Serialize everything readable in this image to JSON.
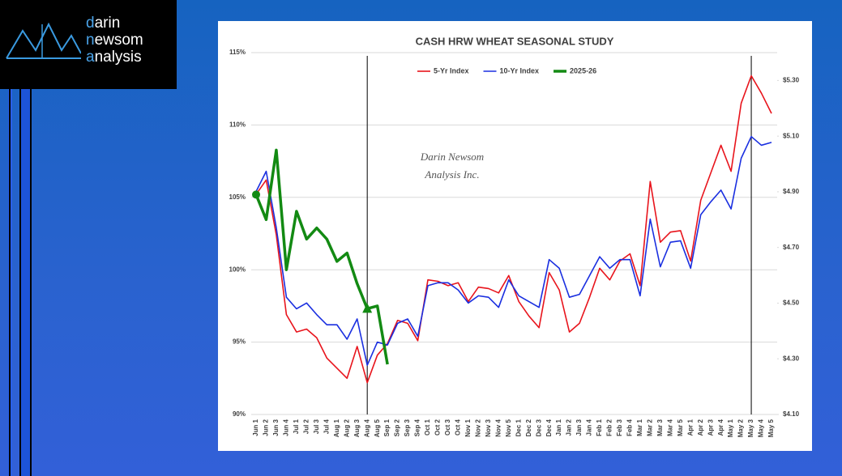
{
  "logo": {
    "lines": [
      "darin",
      "newsom",
      "analysis"
    ]
  },
  "chart_data": {
    "type": "line",
    "title": "CASH HRW WHEAT SEASONAL STUDY",
    "watermark": [
      "Darin Newsom",
      "Analysis Inc."
    ],
    "categories": [
      "Jun 1",
      "Jun 2",
      "Jun 3",
      "Jun 4",
      "Jul 1",
      "Jul 2",
      "Jul 3",
      "Jul 4",
      "Aug 1",
      "Aug 2",
      "Aug 3",
      "Aug 4",
      "Aug 5",
      "Sep 1",
      "Sep 2",
      "Sep 3",
      "Sep 4",
      "Oct 1",
      "Oct 2",
      "Oct 3",
      "Oct 4",
      "Nov 1",
      "Nov 2",
      "Nov 3",
      "Nov 4",
      "Nov 5",
      "Dec 1",
      "Dec 2",
      "Dec 3",
      "Dec 4",
      "Jan 1",
      "Jan 2",
      "Jan 3",
      "Jan 4",
      "Feb 1",
      "Feb 2",
      "Feb 3",
      "Feb 4",
      "Mar 1",
      "Mar 2",
      "Mar 3",
      "Mar 4",
      "Mar 5",
      "Apr 1",
      "Apr 2",
      "Apr 3",
      "Apr 4",
      "May 1",
      "May 2",
      "May 3",
      "May 4",
      "May 5"
    ],
    "series": [
      {
        "name": "5-Yr Index",
        "color": "#e8141c",
        "axis": "y",
        "values": [
          105.2,
          106.2,
          102.4,
          96.9,
          95.7,
          95.9,
          95.3,
          93.9,
          93.2,
          92.5,
          94.7,
          92.2,
          94.1,
          94.9,
          96.5,
          96.3,
          95.1,
          99.3,
          99.2,
          98.9,
          99.1,
          97.8,
          98.8,
          98.7,
          98.4,
          99.6,
          97.8,
          96.8,
          96.0,
          99.8,
          98.6,
          95.7,
          96.3,
          98.1,
          100.1,
          99.3,
          100.6,
          101.1,
          98.9,
          106.1,
          101.9,
          102.6,
          102.7,
          100.6,
          104.8,
          106.7,
          108.6,
          106.8,
          111.5,
          113.4,
          112.2,
          110.8
        ]
      },
      {
        "name": "10-Yr Index",
        "color": "#1a2fe0",
        "axis": "y",
        "values": [
          105.4,
          106.8,
          102.9,
          98.1,
          97.3,
          97.7,
          96.9,
          96.2,
          96.2,
          95.2,
          96.6,
          93.4,
          95.0,
          94.8,
          96.3,
          96.6,
          95.4,
          98.9,
          99.1,
          99.1,
          98.6,
          97.7,
          98.2,
          98.1,
          97.4,
          99.3,
          98.2,
          97.8,
          97.4,
          100.7,
          100.1,
          98.1,
          98.3,
          99.6,
          100.9,
          100.1,
          100.7,
          100.7,
          98.2,
          103.5,
          100.2,
          101.9,
          102.0,
          100.1,
          103.8,
          104.7,
          105.5,
          104.2,
          107.7,
          109.2,
          108.6,
          108.8
        ]
      },
      {
        "name": "2025-26",
        "color": "#138a13",
        "axis": "y2",
        "values": [
          4.89,
          4.8,
          5.05,
          4.62,
          4.83,
          4.73,
          4.77,
          4.73,
          4.65,
          4.68,
          4.57,
          4.48,
          4.49,
          4.28,
          null,
          null,
          null,
          null,
          null,
          null,
          null,
          null,
          null,
          null,
          null,
          null,
          null,
          null,
          null,
          null,
          null,
          null,
          null,
          null,
          null,
          null,
          null,
          null,
          null,
          null,
          null,
          null,
          null,
          null,
          null,
          null,
          null,
          null,
          null,
          null,
          null,
          null
        ]
      }
    ],
    "vertical_lines": [
      "Aug 4",
      "May 3"
    ],
    "ylim": [
      90,
      115
    ],
    "yticks": [
      {
        "value": 90,
        "label": "90%"
      },
      {
        "value": 95,
        "label": "95%"
      },
      {
        "value": 100,
        "label": "100%"
      },
      {
        "value": 105,
        "label": "105%"
      },
      {
        "value": 110,
        "label": "110%"
      },
      {
        "value": 115,
        "label": "115%"
      }
    ],
    "y2lim": [
      4.1,
      5.4
    ],
    "y2ticks": [
      {
        "value": 4.1,
        "label": "$4.10"
      },
      {
        "value": 4.3,
        "label": "$4.30"
      },
      {
        "value": 4.5,
        "label": "$4.50"
      },
      {
        "value": 4.7,
        "label": "$4.70"
      },
      {
        "value": 4.9,
        "label": "$4.90"
      },
      {
        "value": 5.1,
        "label": "$5.10"
      },
      {
        "value": 5.3,
        "label": "$5.30"
      }
    ],
    "grid": true,
    "legend": "top"
  }
}
